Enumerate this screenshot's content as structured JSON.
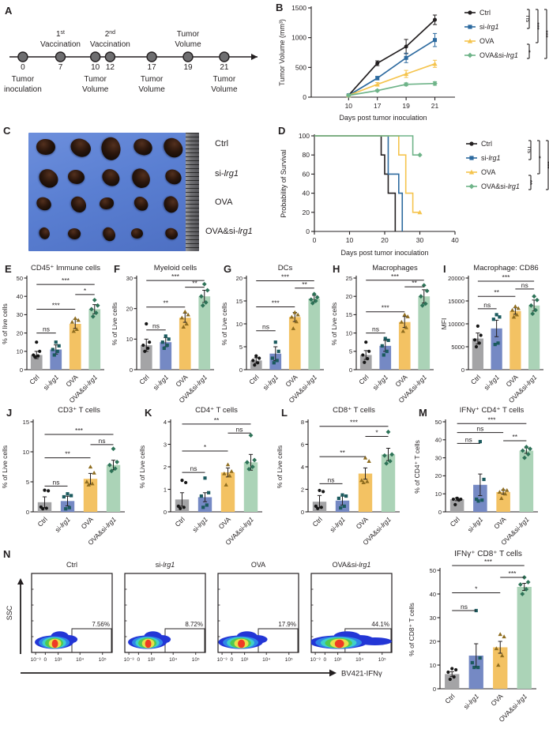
{
  "letters": {
    "A": "A",
    "B": "B",
    "C": "C",
    "D": "D",
    "E": "E",
    "F": "F",
    "G": "G",
    "H": "H",
    "I": "I",
    "J": "J",
    "K": "K",
    "L": "L",
    "M": "M",
    "N": "N"
  },
  "groups": [
    "Ctrl",
    "si-lrg1",
    "OVA",
    "OVA&si-lrg1"
  ],
  "colors": {
    "bar": [
      "#a4a4a6",
      "#7589c4",
      "#f3c263",
      "#abd3b7"
    ],
    "line": [
      "#231f20",
      "#2d6a9f",
      "#f5c44e",
      "#6fb489"
    ],
    "dot": [
      "#161616",
      "#1b5a5e",
      "#8f6d1f",
      "#2d7257"
    ],
    "axis": "#231f20"
  },
  "panel_a": {
    "above": [
      {
        "day": 7,
        "lines": [
          "1st",
          "Vaccination"
        ]
      },
      {
        "day": 12,
        "lines": [
          "2nd",
          "Vaccination"
        ]
      },
      {
        "day": 19,
        "lines": [
          "Tumor",
          "Volume"
        ]
      }
    ],
    "below": [
      {
        "day": 0,
        "lines": [
          "Tumor",
          "inoculation"
        ]
      },
      {
        "day": 10,
        "lines": [
          "Tumor",
          "Volume"
        ]
      },
      {
        "day": 17,
        "lines": [
          "Tumor",
          "Volume"
        ]
      },
      {
        "day": 21,
        "lines": [
          "Tumor",
          "Volume"
        ]
      }
    ],
    "days": [
      0,
      7,
      10,
      12,
      17,
      19,
      21
    ]
  },
  "panel_c": {
    "labels": [
      "Ctrl",
      "si-lrg1",
      "OVA",
      "OVA&si-lrg1"
    ],
    "rows": 4,
    "cols": 5
  },
  "chart_data": [
    {
      "type": "line",
      "panel": "B",
      "ylabel": "Tumor Volume (mm³)",
      "xlabel": "Days post tumor inoculation",
      "x": [
        10,
        17,
        19,
        21
      ],
      "ylim": [
        0,
        1500
      ],
      "yticks": [
        0,
        500,
        1000,
        1500
      ],
      "series": [
        {
          "name": "Ctrl",
          "values": [
            30,
            570,
            850,
            1300
          ],
          "errors": [
            15,
            40,
            120,
            80
          ]
        },
        {
          "name": "si-lrg1",
          "values": [
            30,
            320,
            660,
            960
          ],
          "errors": [
            15,
            30,
            80,
            110
          ]
        },
        {
          "name": "OVA",
          "values": [
            30,
            215,
            390,
            560
          ],
          "errors": [
            15,
            30,
            60,
            60
          ]
        },
        {
          "name": "OVA&si-lrg1",
          "values": [
            30,
            110,
            215,
            230
          ],
          "errors": [
            15,
            15,
            25,
            30
          ]
        }
      ],
      "sig_brackets": [
        "ns",
        "***",
        "*",
        "***"
      ]
    },
    {
      "type": "survival",
      "panel": "D",
      "ylabel": "Probability of Survival",
      "xlabel": "Days post tumor inoculation",
      "xlim": [
        0,
        40
      ],
      "xticks": [
        0,
        10,
        20,
        30,
        40
      ],
      "yticks": [
        0,
        20,
        40,
        60,
        80,
        100
      ],
      "series": [
        {
          "name": "Ctrl",
          "steps": [
            [
              0,
              100
            ],
            [
              19,
              100
            ],
            [
              19,
              80
            ],
            [
              20,
              80
            ],
            [
              20,
              60
            ],
            [
              21,
              60
            ],
            [
              21,
              40
            ],
            [
              23,
              40
            ],
            [
              23,
              0
            ]
          ]
        },
        {
          "name": "si-lrg1",
          "steps": [
            [
              0,
              100
            ],
            [
              21,
              100
            ],
            [
              21,
              60
            ],
            [
              24,
              60
            ],
            [
              24,
              40
            ],
            [
              25,
              40
            ],
            [
              25,
              0
            ]
          ]
        },
        {
          "name": "OVA",
          "steps": [
            [
              0,
              100
            ],
            [
              24,
              100
            ],
            [
              24,
              80
            ],
            [
              26,
              80
            ],
            [
              26,
              40
            ],
            [
              28,
              40
            ],
            [
              28,
              20
            ],
            [
              30,
              20
            ]
          ],
          "censor": [
            30,
            20
          ]
        },
        {
          "name": "OVA&si-lrg1",
          "steps": [
            [
              0,
              100
            ],
            [
              28,
              100
            ],
            [
              28,
              80
            ],
            [
              30,
              80
            ]
          ],
          "censor": [
            30,
            80
          ]
        }
      ],
      "sig_brackets": [
        "ns",
        "*",
        "**",
        "***"
      ]
    },
    {
      "type": "bar",
      "panel": "E",
      "title": "CD45⁺ Immune cells",
      "ylabel": "% of live cells",
      "ylim": [
        0,
        50
      ],
      "yticks": [
        0,
        10,
        20,
        30,
        40,
        50
      ],
      "values": [
        8,
        11,
        25,
        33
      ],
      "errors": [
        2,
        2.5,
        2.5,
        2.5
      ],
      "points": [
        [
          7,
          7.5,
          8,
          10,
          15
        ],
        [
          8,
          10,
          11,
          13,
          15
        ],
        [
          21,
          22,
          26,
          27,
          28
        ],
        [
          29,
          31,
          33,
          35,
          38
        ]
      ],
      "sig": [
        {
          "a": 0,
          "b": 1,
          "label": "ns",
          "y": 20
        },
        {
          "a": 0,
          "b": 2,
          "label": "***",
          "y": 33
        },
        {
          "a": 2,
          "b": 3,
          "label": "*",
          "y": 41
        },
        {
          "a": 0,
          "b": 3,
          "label": "***",
          "y": 46.5
        }
      ]
    },
    {
      "type": "bar",
      "panel": "F",
      "title": "Myeloid cells",
      "ylabel": "% of Live cells",
      "ylim": [
        0,
        30
      ],
      "yticks": [
        0,
        10,
        20,
        30
      ],
      "values": [
        8,
        9,
        17,
        24
      ],
      "errors": [
        2,
        1.5,
        1.5,
        2
      ],
      "points": [
        [
          6,
          7,
          8,
          9,
          15
        ],
        [
          7,
          8,
          9,
          10,
          11
        ],
        [
          14,
          15,
          17,
          18,
          19
        ],
        [
          21,
          22,
          24,
          26,
          28
        ]
      ],
      "sig": [
        {
          "a": 0,
          "b": 1,
          "label": "ns",
          "y": 13
        },
        {
          "a": 0,
          "b": 2,
          "label": "**",
          "y": 20.5
        },
        {
          "a": 2,
          "b": 3,
          "label": "**",
          "y": 27
        },
        {
          "a": 0,
          "b": 3,
          "label": "***",
          "y": 29.2
        }
      ]
    },
    {
      "type": "bar",
      "panel": "G",
      "title": "DCs",
      "ylabel": "% of Live cells",
      "ylim": [
        0,
        20
      ],
      "yticks": [
        0,
        5,
        10,
        15,
        20
      ],
      "values": [
        2,
        3.5,
        11.5,
        15.5
      ],
      "errors": [
        0.6,
        1.5,
        1,
        0.7
      ],
      "points": [
        [
          1,
          1.5,
          2,
          2.5,
          3
        ],
        [
          1.5,
          2,
          2.5,
          4,
          6
        ],
        [
          9,
          10.5,
          11.5,
          12,
          12.5
        ],
        [
          14.5,
          15,
          15.3,
          15.8,
          16.5
        ]
      ],
      "sig": [
        {
          "a": 0,
          "b": 1,
          "label": "ns",
          "y": 8.5
        },
        {
          "a": 0,
          "b": 2,
          "label": "***",
          "y": 13.7
        },
        {
          "a": 2,
          "b": 3,
          "label": "**",
          "y": 17.8
        },
        {
          "a": 0,
          "b": 3,
          "label": "***",
          "y": 19.4
        }
      ]
    },
    {
      "type": "bar",
      "panel": "H",
      "title": "Macrophages",
      "ylabel": "% of Live cells",
      "ylim": [
        0,
        25
      ],
      "yticks": [
        0,
        5,
        10,
        15,
        20,
        25
      ],
      "values": [
        4,
        6.5,
        13,
        20
      ],
      "errors": [
        1.2,
        1.5,
        1.5,
        1.8
      ],
      "points": [
        [
          2,
          3,
          4,
          5,
          7.5
        ],
        [
          4,
          5,
          6.5,
          8,
          8.5
        ],
        [
          10.5,
          11.5,
          13,
          14.5,
          15
        ],
        [
          17.5,
          18,
          20,
          21.5,
          23
        ]
      ],
      "sig": [
        {
          "a": 0,
          "b": 1,
          "label": "ns",
          "y": 10
        },
        {
          "a": 0,
          "b": 2,
          "label": "***",
          "y": 15.8
        },
        {
          "a": 2,
          "b": 3,
          "label": "**",
          "y": 22.6
        },
        {
          "a": 0,
          "b": 3,
          "label": "***",
          "y": 24.4
        }
      ]
    },
    {
      "type": "bar",
      "panel": "I",
      "title": "Macrophage: CD86",
      "ylabel": "MFI",
      "ylim": [
        0,
        20000
      ],
      "yticks": [
        0,
        5000,
        10000,
        15000,
        20000
      ],
      "values": [
        6800,
        9000,
        12800,
        14000
      ],
      "errors": [
        1200,
        1800,
        700,
        1200
      ],
      "points": [
        [
          5000,
          5800,
          6500,
          7500,
          9500
        ],
        [
          5500,
          5800,
          11000,
          11500,
          12000
        ],
        [
          11500,
          12000,
          13000,
          13400,
          13800
        ],
        [
          12200,
          13000,
          14000,
          15200,
          16000
        ]
      ],
      "sig": [
        {
          "a": 0,
          "b": 1,
          "label": "ns",
          "y": 13300
        },
        {
          "a": 0,
          "b": 2,
          "label": "**",
          "y": 16000
        },
        {
          "a": 2,
          "b": 3,
          "label": "ns",
          "y": 17600
        },
        {
          "a": 0,
          "b": 3,
          "label": "***",
          "y": 19300
        }
      ]
    },
    {
      "type": "bar",
      "panel": "J",
      "title": "CD3⁺ T cells",
      "ylabel": "% of Live cells",
      "ylim": [
        0,
        15
      ],
      "yticks": [
        0,
        5,
        10,
        15
      ],
      "values": [
        1.6,
        1.8,
        5.5,
        7.8
      ],
      "errors": [
        0.9,
        0.8,
        0.9,
        0.8
      ],
      "points": [
        [
          0.5,
          0.6,
          0.8,
          3.5,
          3.6
        ],
        [
          0.5,
          0.7,
          2.5,
          2.7,
          3.0
        ],
        [
          4.5,
          4.7,
          5.0,
          6.5,
          7.5
        ],
        [
          6.8,
          7.2,
          7.8,
          8.3,
          10.5
        ]
      ],
      "sig": [
        {
          "a": 0,
          "b": 1,
          "label": "ns",
          "y": 4.3
        },
        {
          "a": 0,
          "b": 2,
          "label": "**",
          "y": 9
        },
        {
          "a": 2,
          "b": 3,
          "label": "ns",
          "y": 11.2
        },
        {
          "a": 0,
          "b": 3,
          "label": "***",
          "y": 12.9
        }
      ]
    },
    {
      "type": "bar",
      "panel": "K",
      "title": "CD4⁺ T cells",
      "ylabel": "% of Live cells",
      "ylim": [
        0,
        4
      ],
      "yticks": [
        0,
        1,
        2,
        3,
        4
      ],
      "values": [
        0.55,
        0.65,
        1.75,
        2.2
      ],
      "errors": [
        0.3,
        0.2,
        0.2,
        0.35
      ],
      "points": [
        [
          0.15,
          0.2,
          0.25,
          1.3,
          1.4
        ],
        [
          0.2,
          0.3,
          0.7,
          0.85,
          1.5
        ],
        [
          1.2,
          1.6,
          1.7,
          1.8,
          2.1
        ],
        [
          1.9,
          2.0,
          2.2,
          2.3,
          3.4
        ]
      ],
      "sig": [
        {
          "a": 0,
          "b": 1,
          "label": "ns",
          "y": 1.75
        },
        {
          "a": 0,
          "b": 2,
          "label": "*",
          "y": 2.7
        },
        {
          "a": 2,
          "b": 3,
          "label": "ns",
          "y": 3.5
        },
        {
          "a": 0,
          "b": 3,
          "label": "**",
          "y": 3.9
        }
      ]
    },
    {
      "type": "bar",
      "panel": "L",
      "title": "CD8⁺ T cells",
      "ylabel": "% of Live cells",
      "ylim": [
        0,
        8
      ],
      "yticks": [
        0,
        2,
        4,
        6,
        8
      ],
      "values": [
        0.9,
        1.0,
        3.4,
        5.1
      ],
      "errors": [
        0.55,
        0.4,
        0.5,
        0.55
      ],
      "points": [
        [
          0.3,
          0.4,
          0.5,
          1.8,
          1.9
        ],
        [
          0.35,
          0.5,
          1.2,
          1.4,
          1.5
        ],
        [
          2.6,
          2.7,
          2.8,
          4.5,
          4.8
        ],
        [
          4.3,
          4.5,
          5.0,
          5.1,
          7.1
        ]
      ],
      "sig": [
        {
          "a": 0,
          "b": 1,
          "label": "ns",
          "y": 2.5
        },
        {
          "a": 0,
          "b": 2,
          "label": "**",
          "y": 4.9
        },
        {
          "a": 2,
          "b": 3,
          "label": "*",
          "y": 6.7
        },
        {
          "a": 0,
          "b": 3,
          "label": "***",
          "y": 7.6
        }
      ]
    },
    {
      "type": "bar",
      "panel": "M",
      "title": "IFNγ⁺ CD4⁺ T cells",
      "ylabel": "% of CD4⁺ T cells",
      "ylim": [
        0,
        50
      ],
      "yticks": [
        0,
        10,
        20,
        30,
        40,
        50
      ],
      "values": [
        7,
        15,
        11,
        34
      ],
      "errors": [
        0.8,
        6,
        1.2,
        1.5
      ],
      "points": [
        [
          4,
          6.5,
          7,
          7,
          7.5
        ],
        [
          6,
          6.5,
          7,
          18,
          39
        ],
        [
          7.5,
          10,
          11,
          12,
          12.5
        ],
        [
          30,
          32,
          34,
          35,
          36
        ]
      ],
      "sig": [
        {
          "a": 0,
          "b": 1,
          "label": "ns",
          "y": 38
        },
        {
          "a": 0,
          "b": 2,
          "label": "ns",
          "y": 44
        },
        {
          "a": 2,
          "b": 3,
          "label": "**",
          "y": 39.5
        },
        {
          "a": 0,
          "b": 3,
          "label": "***",
          "y": 49
        }
      ]
    },
    {
      "type": "bar",
      "panel": "R",
      "title": "IFNγ⁺ CD8⁺ T cells",
      "ylabel": "% of CD8⁺ T cells",
      "ylim": [
        0,
        50
      ],
      "yticks": [
        0,
        10,
        20,
        30,
        40,
        50
      ],
      "values": [
        6.2,
        14,
        17.5,
        43
      ],
      "errors": [
        1,
        5,
        2.5,
        1.5
      ],
      "points": [
        [
          4,
          5,
          7,
          8,
          8.5
        ],
        [
          9,
          9,
          11,
          13,
          33
        ],
        [
          10,
          14,
          17,
          22,
          23
        ],
        [
          40,
          42,
          44,
          45,
          47
        ]
      ],
      "sig": [
        {
          "a": 0,
          "b": 1,
          "label": "ns",
          "y": 33
        },
        {
          "a": 0,
          "b": 2,
          "label": "*",
          "y": 40.5
        },
        {
          "a": 2,
          "b": 3,
          "label": "***",
          "y": 47
        },
        {
          "a": 0,
          "b": 3,
          "label": "***",
          "y": 52
        }
      ]
    },
    {
      "type": "flow",
      "panel": "N",
      "ylabel": "SSC",
      "xlabel": "BV421-IFNγ",
      "xticks": [
        "10⁻³",
        "0",
        "10³",
        "10⁴",
        "10⁵"
      ],
      "plots": [
        {
          "title": "Ctrl",
          "pct": "7.56%"
        },
        {
          "title": "si-lrg1",
          "pct": "8.72%"
        },
        {
          "title": "OVA",
          "pct": "17.9%"
        },
        {
          "title": "OVA&si-lrg1",
          "pct": "44.1%"
        }
      ]
    }
  ]
}
